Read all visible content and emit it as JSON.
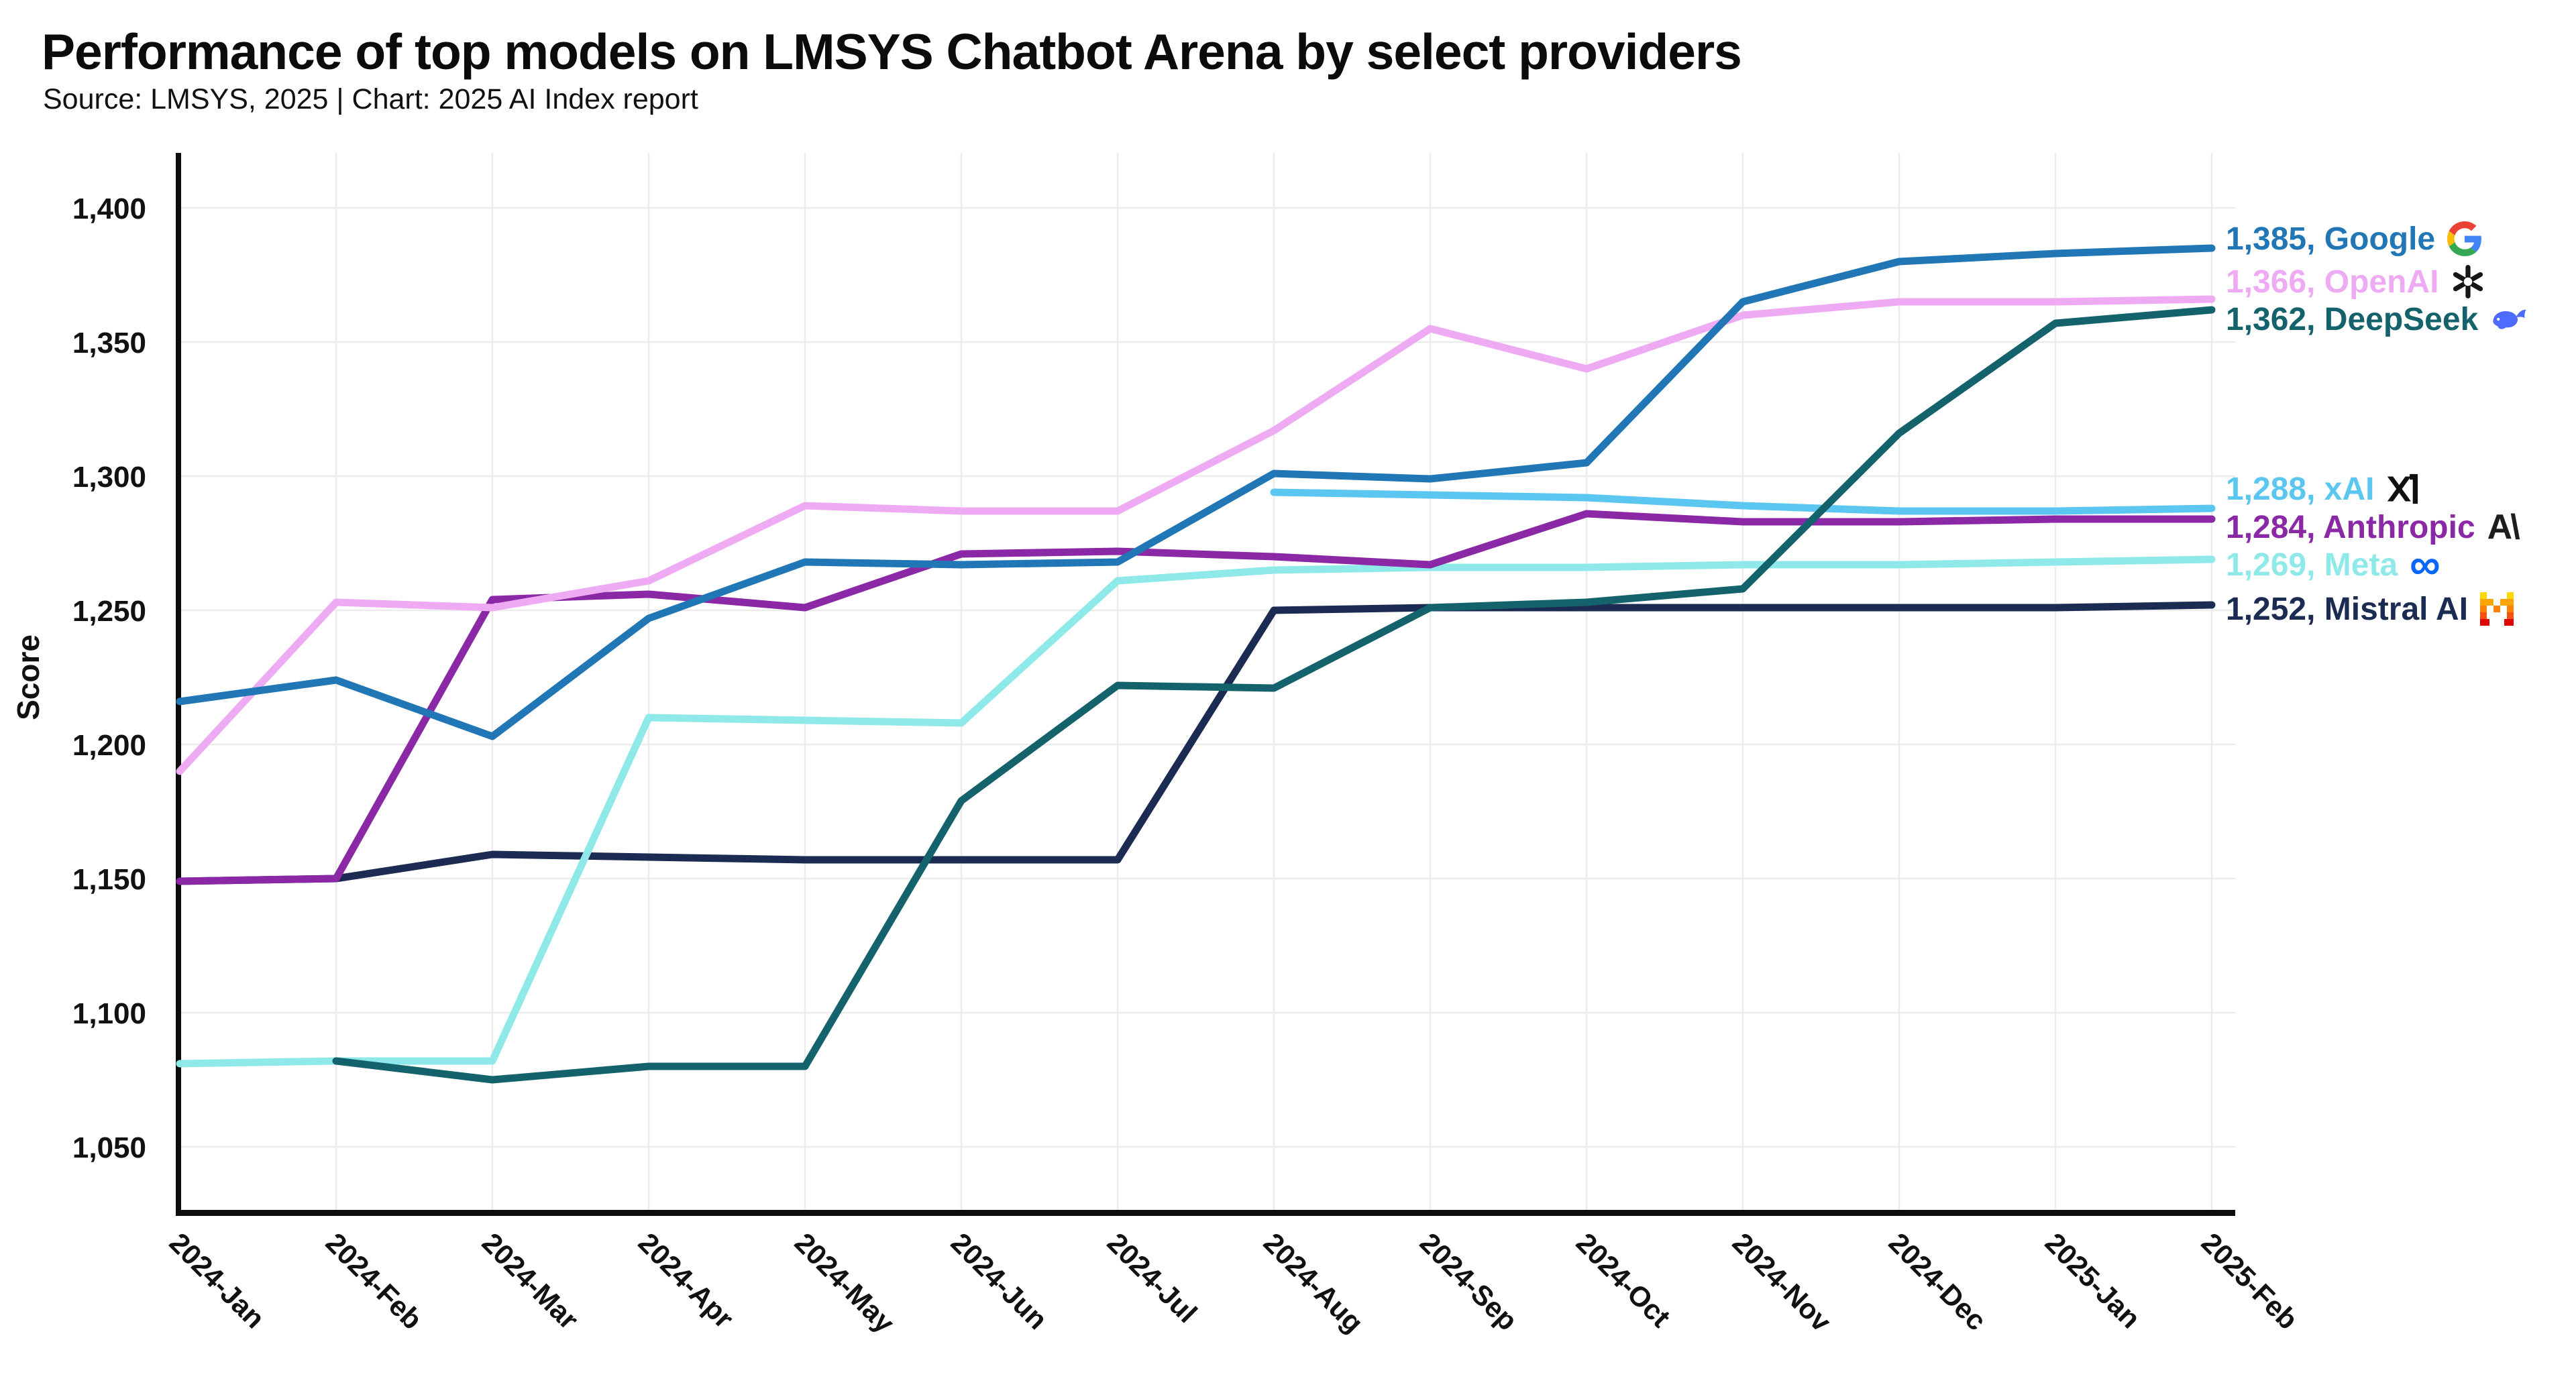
{
  "header": {
    "title": "Performance of top models on LMSYS Chatbot Arena by select providers",
    "source_line": "Source: LMSYS, 2025 | Chart: 2025 AI Index report"
  },
  "chart_data": {
    "type": "line",
    "title": "Performance of top models on LMSYS Chatbot Arena by select providers",
    "ylabel": "Score",
    "xlabel": "",
    "grid": true,
    "legend_position": "right-end-labels",
    "ylim": [
      1050,
      1400
    ],
    "y_ticks": [
      1050,
      1100,
      1150,
      1200,
      1250,
      1300,
      1350,
      1400
    ],
    "y_tick_labels": [
      "1,050",
      "1,100",
      "1,150",
      "1,200",
      "1,250",
      "1,300",
      "1,350",
      "1,400"
    ],
    "x_categories": [
      "2024-Jan",
      "2024-Feb",
      "2024-Mar",
      "2024-Apr",
      "2024-May",
      "2024-Jun",
      "2024-Jul",
      "2024-Aug",
      "2024-Sep",
      "2024-Oct",
      "2024-Nov",
      "2024-Dec",
      "2025-Jan",
      "2025-Feb"
    ],
    "series": [
      {
        "name": "Google",
        "legend_label": "1,385, Google",
        "color": "#2176b5",
        "icon": "google-icon",
        "values": [
          1216,
          1224,
          1203,
          1247,
          1268,
          1267,
          1268,
          1301,
          1299,
          1305,
          1365,
          1380,
          1383,
          1385
        ]
      },
      {
        "name": "OpenAI",
        "legend_label": "1,366, OpenAI",
        "color": "#eeabf4",
        "icon": "openai-icon",
        "values": [
          1190,
          1253,
          1251,
          1261,
          1289,
          1287,
          1287,
          1317,
          1355,
          1340,
          1360,
          1365,
          1365,
          1366
        ]
      },
      {
        "name": "DeepSeek",
        "legend_label": "1,362, DeepSeek",
        "color": "#14626b",
        "icon": "deepseek-icon",
        "values": [
          null,
          1082,
          1075,
          1080,
          1080,
          1179,
          1222,
          1221,
          1251,
          1253,
          1258,
          1316,
          1357,
          1362
        ]
      },
      {
        "name": "xAI",
        "legend_label": "1,288, xAI",
        "color": "#5bc7f0",
        "icon": "xai-icon",
        "values": [
          null,
          null,
          null,
          null,
          null,
          null,
          null,
          1294,
          1293,
          1292,
          1289,
          1287,
          1287,
          1288
        ]
      },
      {
        "name": "Anthropic",
        "legend_label": "1,284, Anthropic",
        "color": "#8a28a5",
        "icon": "anthropic-icon",
        "values": [
          1149,
          1150,
          1254,
          1256,
          1251,
          1271,
          1272,
          1270,
          1267,
          1286,
          1283,
          1283,
          1284,
          1284
        ]
      },
      {
        "name": "Meta",
        "legend_label": "1,269, Meta",
        "color": "#8fe9e9",
        "icon": "meta-icon",
        "values": [
          1081,
          1082,
          1082,
          1210,
          1209,
          1208,
          1261,
          1265,
          1266,
          1266,
          1267,
          1267,
          1268,
          1269
        ]
      },
      {
        "name": "Mistral AI",
        "legend_label": "1,252, Mistral AI",
        "color": "#1b2b52",
        "icon": "mistral-icon",
        "values": [
          1149,
          1150,
          1159,
          1158,
          1157,
          1157,
          1157,
          1250,
          1251,
          1251,
          1251,
          1251,
          1251,
          1252
        ]
      }
    ]
  }
}
